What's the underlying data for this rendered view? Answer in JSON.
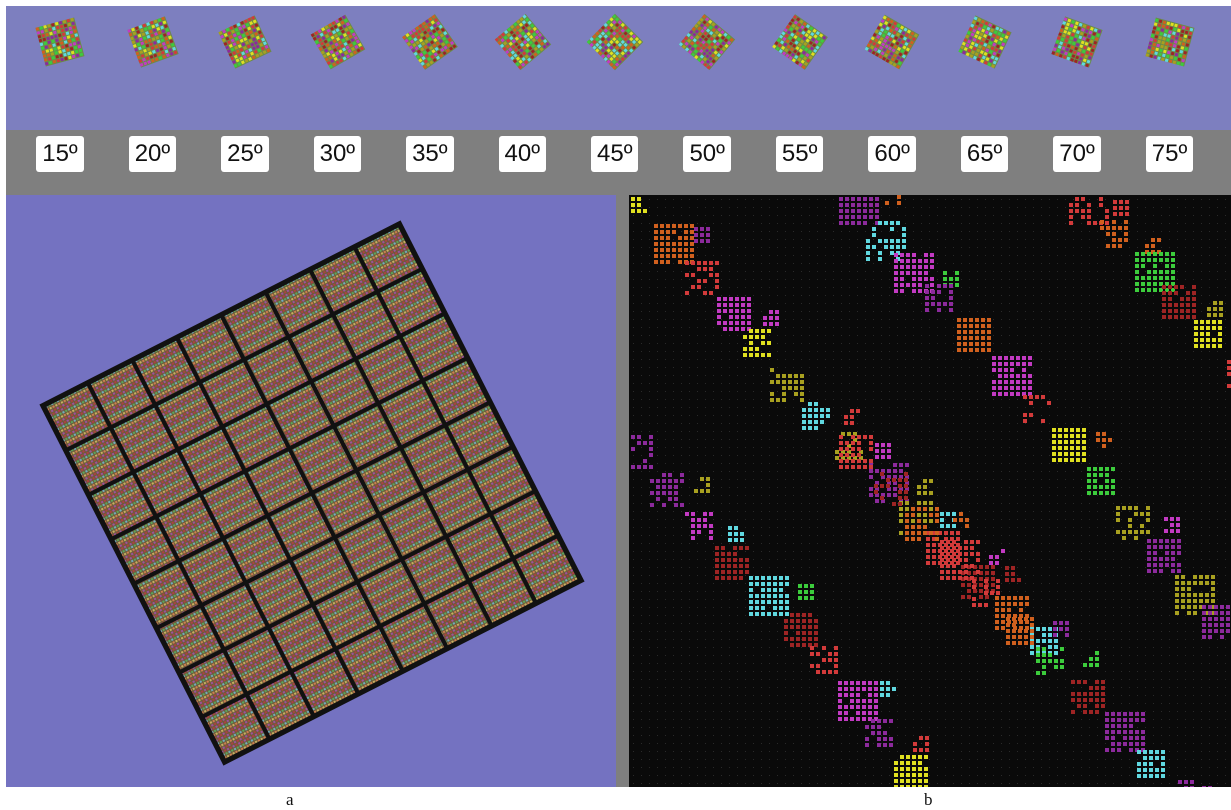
{
  "angles": [
    "15º",
    "20º",
    "25º",
    "30º",
    "35º",
    "40º",
    "45º",
    "50º",
    "55º",
    "60º",
    "65º",
    "70º",
    "75º"
  ],
  "captions": {
    "left": "a",
    "right": "b"
  },
  "colors": {
    "strip_background": "#7d7fbf",
    "label_band": "#7f7f7f",
    "panel_a_background": "#7472c1",
    "panel_b_background": "#0a0a0a",
    "tile_red": "#d23a3a",
    "tile_dark_red": "#9e2424",
    "tile_magenta": "#c23ac2",
    "tile_purple": "#8c2a9c",
    "tile_orange": "#d0601e",
    "tile_yellow": "#e0e020",
    "tile_green": "#3ccc3c",
    "tile_cyan": "#60d8e0",
    "tile_olive": "#a8a020"
  }
}
